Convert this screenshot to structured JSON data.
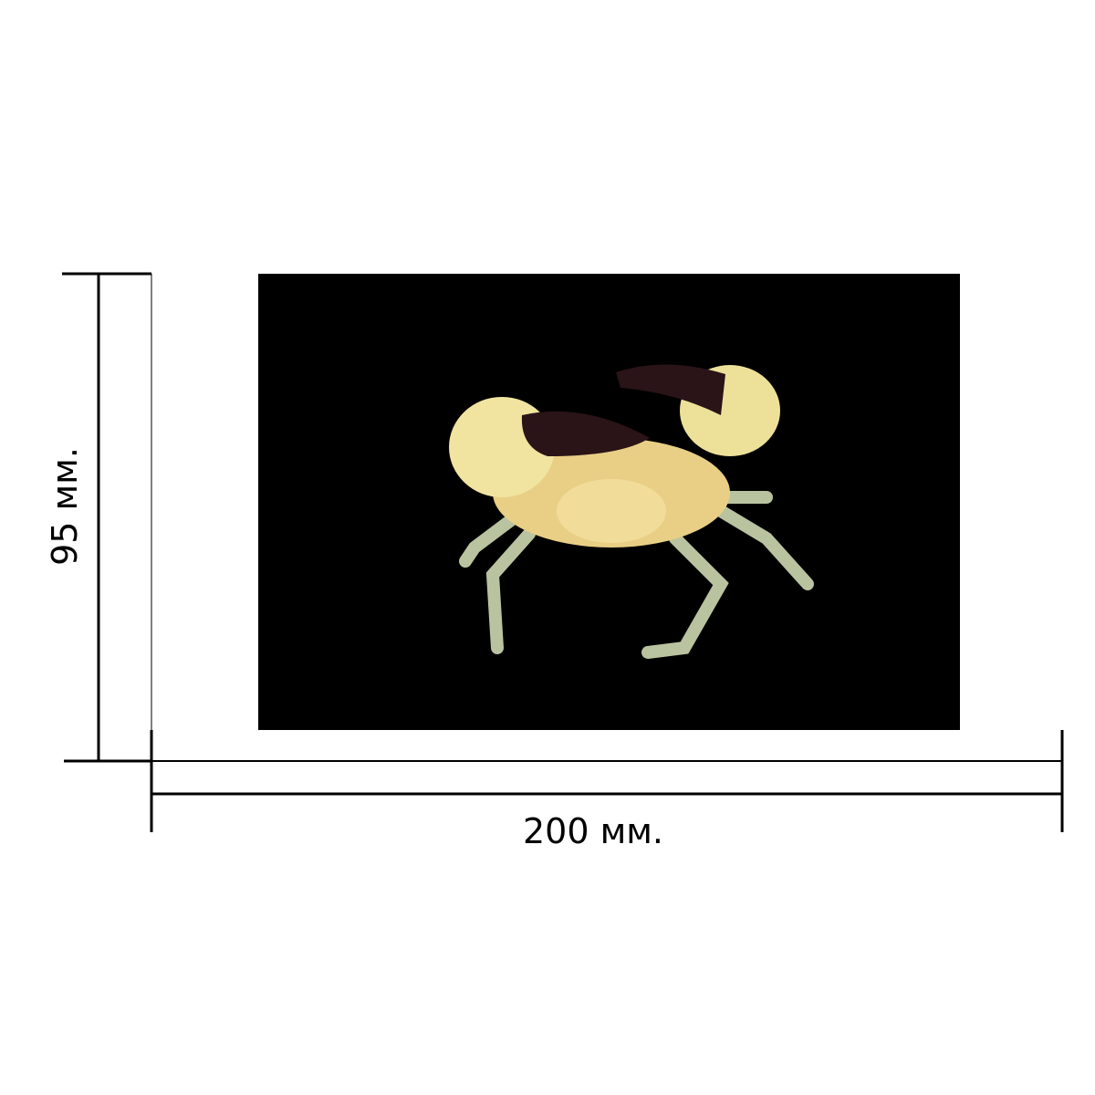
{
  "dimensions": {
    "height_label": "95 мм.",
    "width_label": "200 мм."
  },
  "colors": {
    "background": "#ffffff",
    "photo_background": "#000000",
    "lines": "#000000",
    "crab_shell": "#e8d58a",
    "claw_tips": "#2a1418"
  }
}
